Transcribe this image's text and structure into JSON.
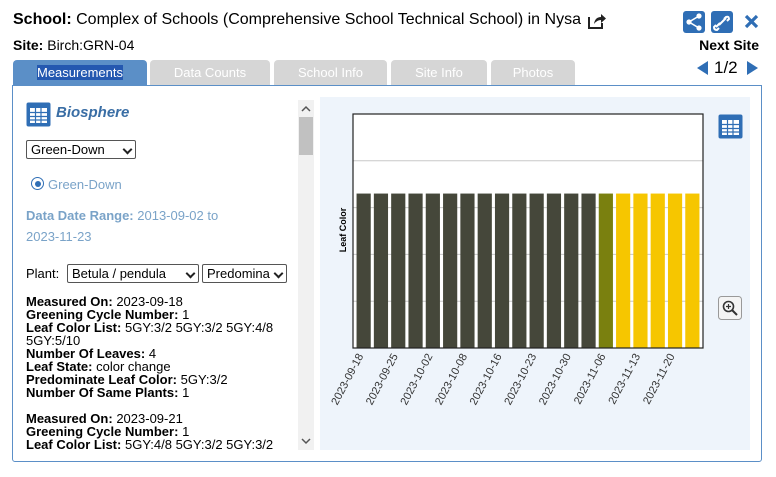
{
  "header": {
    "school_label": "School:",
    "school_name": "Complex of Schools (Comprehensive School Technical School) in Nysa",
    "site_label": "Site:",
    "site_id": "Birch:GRN-04",
    "next_site": "Next Site",
    "pager": "1/2"
  },
  "tabs": [
    "Measurements",
    "Data Counts",
    "School Info",
    "Site Info",
    "Photos"
  ],
  "panel": {
    "title": "Biosphere",
    "protocol_select": "Green-Down",
    "radio": "Green-Down",
    "date_range_label": "Data Date Range:",
    "date_range": "2013-09-02 to 2023-11-23",
    "plant_label": "Plant:",
    "plant_select": "Betula / pendula",
    "part_select": "Predomina",
    "records": [
      {
        "fields": [
          {
            "label": "Measured On",
            "value": "2023-09-18"
          },
          {
            "label": "Greening Cycle Number",
            "value": "1"
          },
          {
            "label": "Leaf Color List",
            "value": "5GY:3/2 5GY:3/2 5GY:4/8 5GY:5/10"
          },
          {
            "label": "Number Of Leaves",
            "value": "4"
          },
          {
            "label": "Leaf State",
            "value": "color change"
          },
          {
            "label": "Predominate Leaf Color",
            "value": "5GY:3/2"
          },
          {
            "label": "Number Of Same Plants",
            "value": "1"
          }
        ]
      },
      {
        "fields": [
          {
            "label": "Measured On",
            "value": "2023-09-21"
          },
          {
            "label": "Greening Cycle Number",
            "value": "1"
          },
          {
            "label": "Leaf Color List",
            "value": "5GY:4/8 5GY:3/2 5GY:3/2"
          }
        ]
      }
    ]
  },
  "chart_data": {
    "type": "bar",
    "y_label": "Leaf Color",
    "categories": [
      "2023-09-18",
      null,
      "2023-09-25",
      null,
      "2023-10-02",
      null,
      "2023-10-08",
      null,
      "2023-10-16",
      null,
      "2023-10-23",
      null,
      "2023-10-30",
      null,
      "2023-11-06",
      null,
      "2023-11-13",
      null,
      "2023-11-20",
      null
    ],
    "values": [
      3.3,
      3.3,
      3.3,
      3.3,
      3.3,
      3.3,
      3.3,
      3.3,
      3.3,
      3.3,
      3.3,
      3.3,
      3.3,
      3.3,
      3.3,
      3.3,
      3.3,
      3.3,
      3.3,
      3.3
    ],
    "colors": [
      "#45473a",
      "#45473a",
      "#45473a",
      "#45473a",
      "#45473a",
      "#45473a",
      "#45473a",
      "#45473a",
      "#45473a",
      "#45473a",
      "#45473a",
      "#45473a",
      "#45473a",
      "#45473a",
      "#7a800f",
      "#f6c600",
      "#f6c600",
      "#f6c600",
      "#f6c600",
      "#f6c600"
    ],
    "ylim": [
      0,
      5
    ],
    "yticks": [
      1,
      2,
      3,
      4
    ],
    "grid": true
  }
}
